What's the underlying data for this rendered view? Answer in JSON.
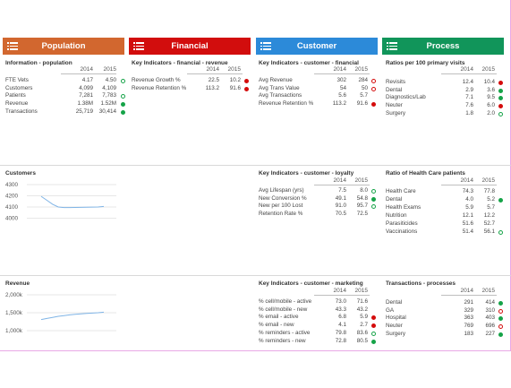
{
  "headers": {
    "population": "Population",
    "financial": "Financial",
    "customer": "Customer",
    "process": "Process"
  },
  "colors": {
    "population": "#d2672f",
    "financial": "#d20d0d",
    "customer": "#2c8ad9",
    "process": "#11955a",
    "status_red": "#d40c0c",
    "status_green": "#15a348",
    "line": "#7fb4e6"
  },
  "icons": {
    "header_menu": "list-menu-icon"
  },
  "years": [
    "2014",
    "2015"
  ],
  "population_panel": {
    "title": "Information - population",
    "rows": [
      {
        "label": "FTE Vets",
        "v2014": "4.17",
        "v2015": "4.50",
        "status": "ogreen"
      },
      {
        "label": "Customers",
        "v2014": "4,099",
        "v2015": "4,109",
        "status": "none"
      },
      {
        "label": "Patients",
        "v2014": "7,281",
        "v2015": "7,783",
        "status": "ogreen"
      },
      {
        "label": "Revenue",
        "v2014": "1.38M",
        "v2015": "1.52M",
        "status": "green"
      },
      {
        "label": "Transactions",
        "v2014": "25,719",
        "v2015": "30,414",
        "status": "green"
      }
    ]
  },
  "financial_panel": {
    "title": "Key Indicators - financial - revenue",
    "rows": [
      {
        "label": "Revenue Growth %",
        "v2014": "22.5",
        "v2015": "10.2",
        "status": "red"
      },
      {
        "label": "Revenue Retention %",
        "v2014": "113.2",
        "v2015": "91.6",
        "status": "red"
      }
    ]
  },
  "customer_financial_panel": {
    "title": "Key Indicators - customer - financial",
    "rows": [
      {
        "label": "Avg Revenue",
        "v2014": "302",
        "v2015": "284",
        "status": "ored"
      },
      {
        "label": "Avg Trans Value",
        "v2014": "54",
        "v2015": "50",
        "status": "ored"
      },
      {
        "label": "Avg Transactions",
        "v2014": "5.6",
        "v2015": "5.7",
        "status": "none"
      },
      {
        "label": "Revenue Retention %",
        "v2014": "113.2",
        "v2015": "91.6",
        "status": "red"
      }
    ]
  },
  "process_ratio_panel": {
    "title": "Ratios per 100 primary visits",
    "rows": [
      {
        "label": "Revisits",
        "v2014": "12.4",
        "v2015": "10.4",
        "status": "red"
      },
      {
        "label": "Dental",
        "v2014": "2.9",
        "v2015": "3.6",
        "status": "green"
      },
      {
        "label": "Diagnostics/Lab",
        "v2014": "7.1",
        "v2015": "9.5",
        "status": "green"
      },
      {
        "label": "Neuter",
        "v2014": "7.6",
        "v2015": "6.0",
        "status": "red"
      },
      {
        "label": "Surgery",
        "v2014": "1.8",
        "v2015": "2.0",
        "status": "ogreen"
      }
    ]
  },
  "customers_chart": {
    "title": "Customers",
    "chart_data": {
      "type": "line",
      "yticks": [
        "4300",
        "4200",
        "4100",
        "4000"
      ],
      "ylim": [
        4000,
        4300
      ],
      "x": [
        0,
        1,
        2,
        3,
        4,
        5,
        6,
        7,
        8,
        9,
        10,
        11
      ],
      "values": [
        4195,
        4160,
        4125,
        4100,
        4095,
        4095,
        4096,
        4097,
        4098,
        4099,
        4100,
        4105
      ]
    }
  },
  "loyalty_panel": {
    "title": "Key Indicators - customer - loyalty",
    "rows": [
      {
        "label": "Avg Lifespan (yrs)",
        "v2014": "7.5",
        "v2015": "8.0",
        "status": "ogreen"
      },
      {
        "label": "New Conversion %",
        "v2014": "49.1",
        "v2015": "54.8",
        "status": "green"
      },
      {
        "label": "New per 100 Lost",
        "v2014": "91.0",
        "v2015": "95.7",
        "status": "ogreen"
      },
      {
        "label": "Retention Rate %",
        "v2014": "70.5",
        "v2015": "72.5",
        "status": "none"
      }
    ]
  },
  "healthcare_panel": {
    "title": "Ratio of Health Care patients",
    "rows": [
      {
        "label": "Health Care",
        "v2014": "74.3",
        "v2015": "77.8",
        "status": "none"
      },
      {
        "label": "Dental",
        "v2014": "4.0",
        "v2015": "5.2",
        "status": "green"
      },
      {
        "label": "Health Exams",
        "v2014": "5.9",
        "v2015": "5.7",
        "status": "none"
      },
      {
        "label": "Nutrition",
        "v2014": "12.1",
        "v2015": "12.2",
        "status": "none"
      },
      {
        "label": "Parasiticides",
        "v2014": "51.6",
        "v2015": "52.7",
        "status": "none"
      },
      {
        "label": "Vaccinations",
        "v2014": "51.4",
        "v2015": "56.1",
        "status": "ogreen"
      }
    ]
  },
  "revenue_chart": {
    "title": "Revenue",
    "chart_data": {
      "type": "line",
      "yticks": [
        "2,000k",
        "1,500k",
        "1,000k"
      ],
      "ylim": [
        1000,
        2000
      ],
      "x": [
        0,
        1,
        2,
        3,
        4,
        5,
        6,
        7,
        8,
        9,
        10,
        11
      ],
      "values": [
        1310,
        1340,
        1370,
        1400,
        1420,
        1440,
        1455,
        1470,
        1480,
        1490,
        1500,
        1515
      ]
    }
  },
  "marketing_panel": {
    "title": "Key Indicators - customer - marketing",
    "rows": [
      {
        "label": "% cell/mobile - active",
        "v2014": "73.0",
        "v2015": "71.6",
        "status": "none"
      },
      {
        "label": "% cell/mobile - new",
        "v2014": "43.3",
        "v2015": "43.2",
        "status": "none"
      },
      {
        "label": "% email - active",
        "v2014": "6.8",
        "v2015": "5.9",
        "status": "red"
      },
      {
        "label": "% email - new",
        "v2014": "4.1",
        "v2015": "2.7",
        "status": "red"
      },
      {
        "label": "% reminders - active",
        "v2014": "79.8",
        "v2015": "83.6",
        "status": "ogreen"
      },
      {
        "label": "% reminders - new",
        "v2014": "72.8",
        "v2015": "80.5",
        "status": "green"
      }
    ]
  },
  "transactions_panel": {
    "title": "Transactions - processes",
    "rows": [
      {
        "label": "Dental",
        "v2014": "291",
        "v2015": "414",
        "status": "green"
      },
      {
        "label": "GA",
        "v2014": "329",
        "v2015": "310",
        "status": "ored"
      },
      {
        "label": "Hospital",
        "v2014": "363",
        "v2015": "403",
        "status": "green"
      },
      {
        "label": "Neuter",
        "v2014": "769",
        "v2015": "696",
        "status": "ored"
      },
      {
        "label": "Surgery",
        "v2014": "183",
        "v2015": "227",
        "status": "green"
      }
    ]
  }
}
